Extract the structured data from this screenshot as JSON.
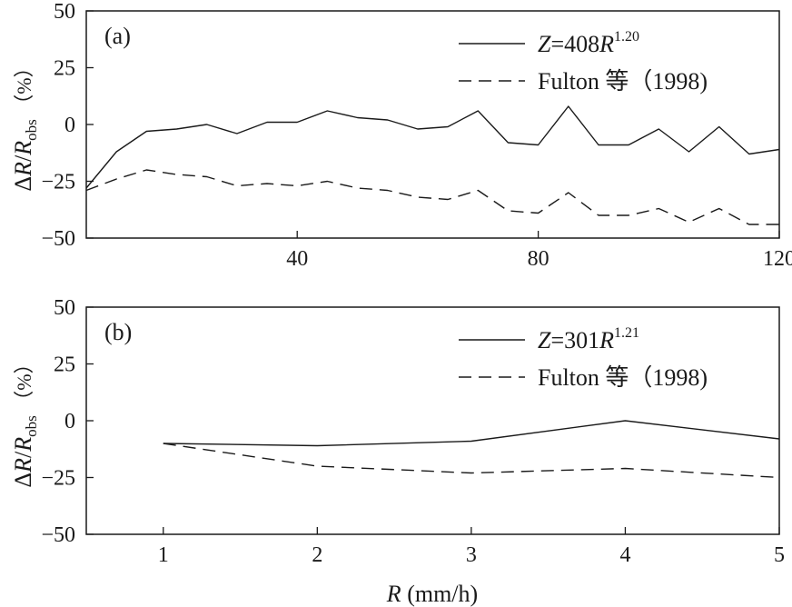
{
  "chart_data": [
    {
      "type": "line",
      "panel_label": "(a)",
      "ylabel": "ΔR/R_obs (%)",
      "ylabel_parts": {
        "delta": "Δ",
        "r": "R",
        "slash": "/",
        "r2": "R",
        "sub": "obs",
        "unit": "（%）"
      },
      "xlabel": "",
      "xlim": [
        5,
        120
      ],
      "ylim": [
        -50,
        50
      ],
      "x_ticks": [
        40,
        80,
        120
      ],
      "x_tick_labels": [
        "40",
        "80",
        "120"
      ],
      "y_ticks": [
        50,
        25,
        0,
        -25,
        -50
      ],
      "y_tick_labels": [
        "50",
        "25",
        "0",
        "−25",
        "−50"
      ],
      "grid": false,
      "legend_position": "top-right",
      "x": [
        5,
        10,
        15,
        20,
        25,
        30,
        35,
        40,
        45,
        50,
        55,
        60,
        65,
        70,
        75,
        80,
        85,
        90,
        95,
        100,
        105,
        110,
        115,
        120
      ],
      "series": [
        {
          "name": "Z=408R^1.20",
          "label_parts": {
            "z": "Z",
            "eq": "=408",
            "r": "R",
            "exp": "1.20"
          },
          "style": "solid",
          "values": [
            -28,
            -12,
            -3,
            -2,
            0,
            -4,
            1,
            1,
            6,
            3,
            2,
            -2,
            -1,
            6,
            -8,
            -9,
            8,
            -9,
            -9,
            -2,
            -12,
            -1,
            -13,
            -11
          ]
        },
        {
          "name": "Fulton 等（1998)",
          "label_parts": {
            "text": "Fulton 等（1998)"
          },
          "style": "dashed",
          "values": [
            -29,
            -24,
            -20,
            -22,
            -23,
            -27,
            -26,
            -27,
            -25,
            -28,
            -29,
            -32,
            -33,
            -29,
            -38,
            -39,
            -30,
            -40,
            -40,
            -37,
            -43,
            -37,
            -44,
            -44
          ]
        }
      ]
    },
    {
      "type": "line",
      "panel_label": "(b)",
      "ylabel": "ΔR/R_obs (%)",
      "ylabel_parts": {
        "delta": "Δ",
        "r": "R",
        "slash": "/",
        "r2": "R",
        "sub": "obs",
        "unit": "（%）"
      },
      "xlabel": "R (mm/h)",
      "xlabel_parts": {
        "r": "R",
        "unit": "(mm/h)"
      },
      "xlim": [
        0.5,
        5
      ],
      "ylim": [
        -50,
        50
      ],
      "x_ticks": [
        1,
        2,
        3,
        4,
        5
      ],
      "x_tick_labels": [
        "1",
        "2",
        "3",
        "4",
        "5"
      ],
      "y_ticks": [
        50,
        25,
        0,
        -25,
        -50
      ],
      "y_tick_labels": [
        "50",
        "25",
        "0",
        "−25",
        "−50"
      ],
      "grid": false,
      "legend_position": "top-right",
      "x": [
        1,
        2,
        3,
        4,
        5
      ],
      "series": [
        {
          "name": "Z=301R^1.21",
          "label_parts": {
            "z": "Z",
            "eq": "=301",
            "r": "R",
            "exp": "1.21"
          },
          "style": "solid",
          "values": [
            -10,
            -11,
            -9,
            0,
            -8
          ]
        },
        {
          "name": "Fulton 等（1998)",
          "label_parts": {
            "text": "Fulton 等（1998)"
          },
          "style": "dashed",
          "values": [
            -10,
            -20,
            -23,
            -21,
            -25
          ]
        }
      ]
    }
  ]
}
